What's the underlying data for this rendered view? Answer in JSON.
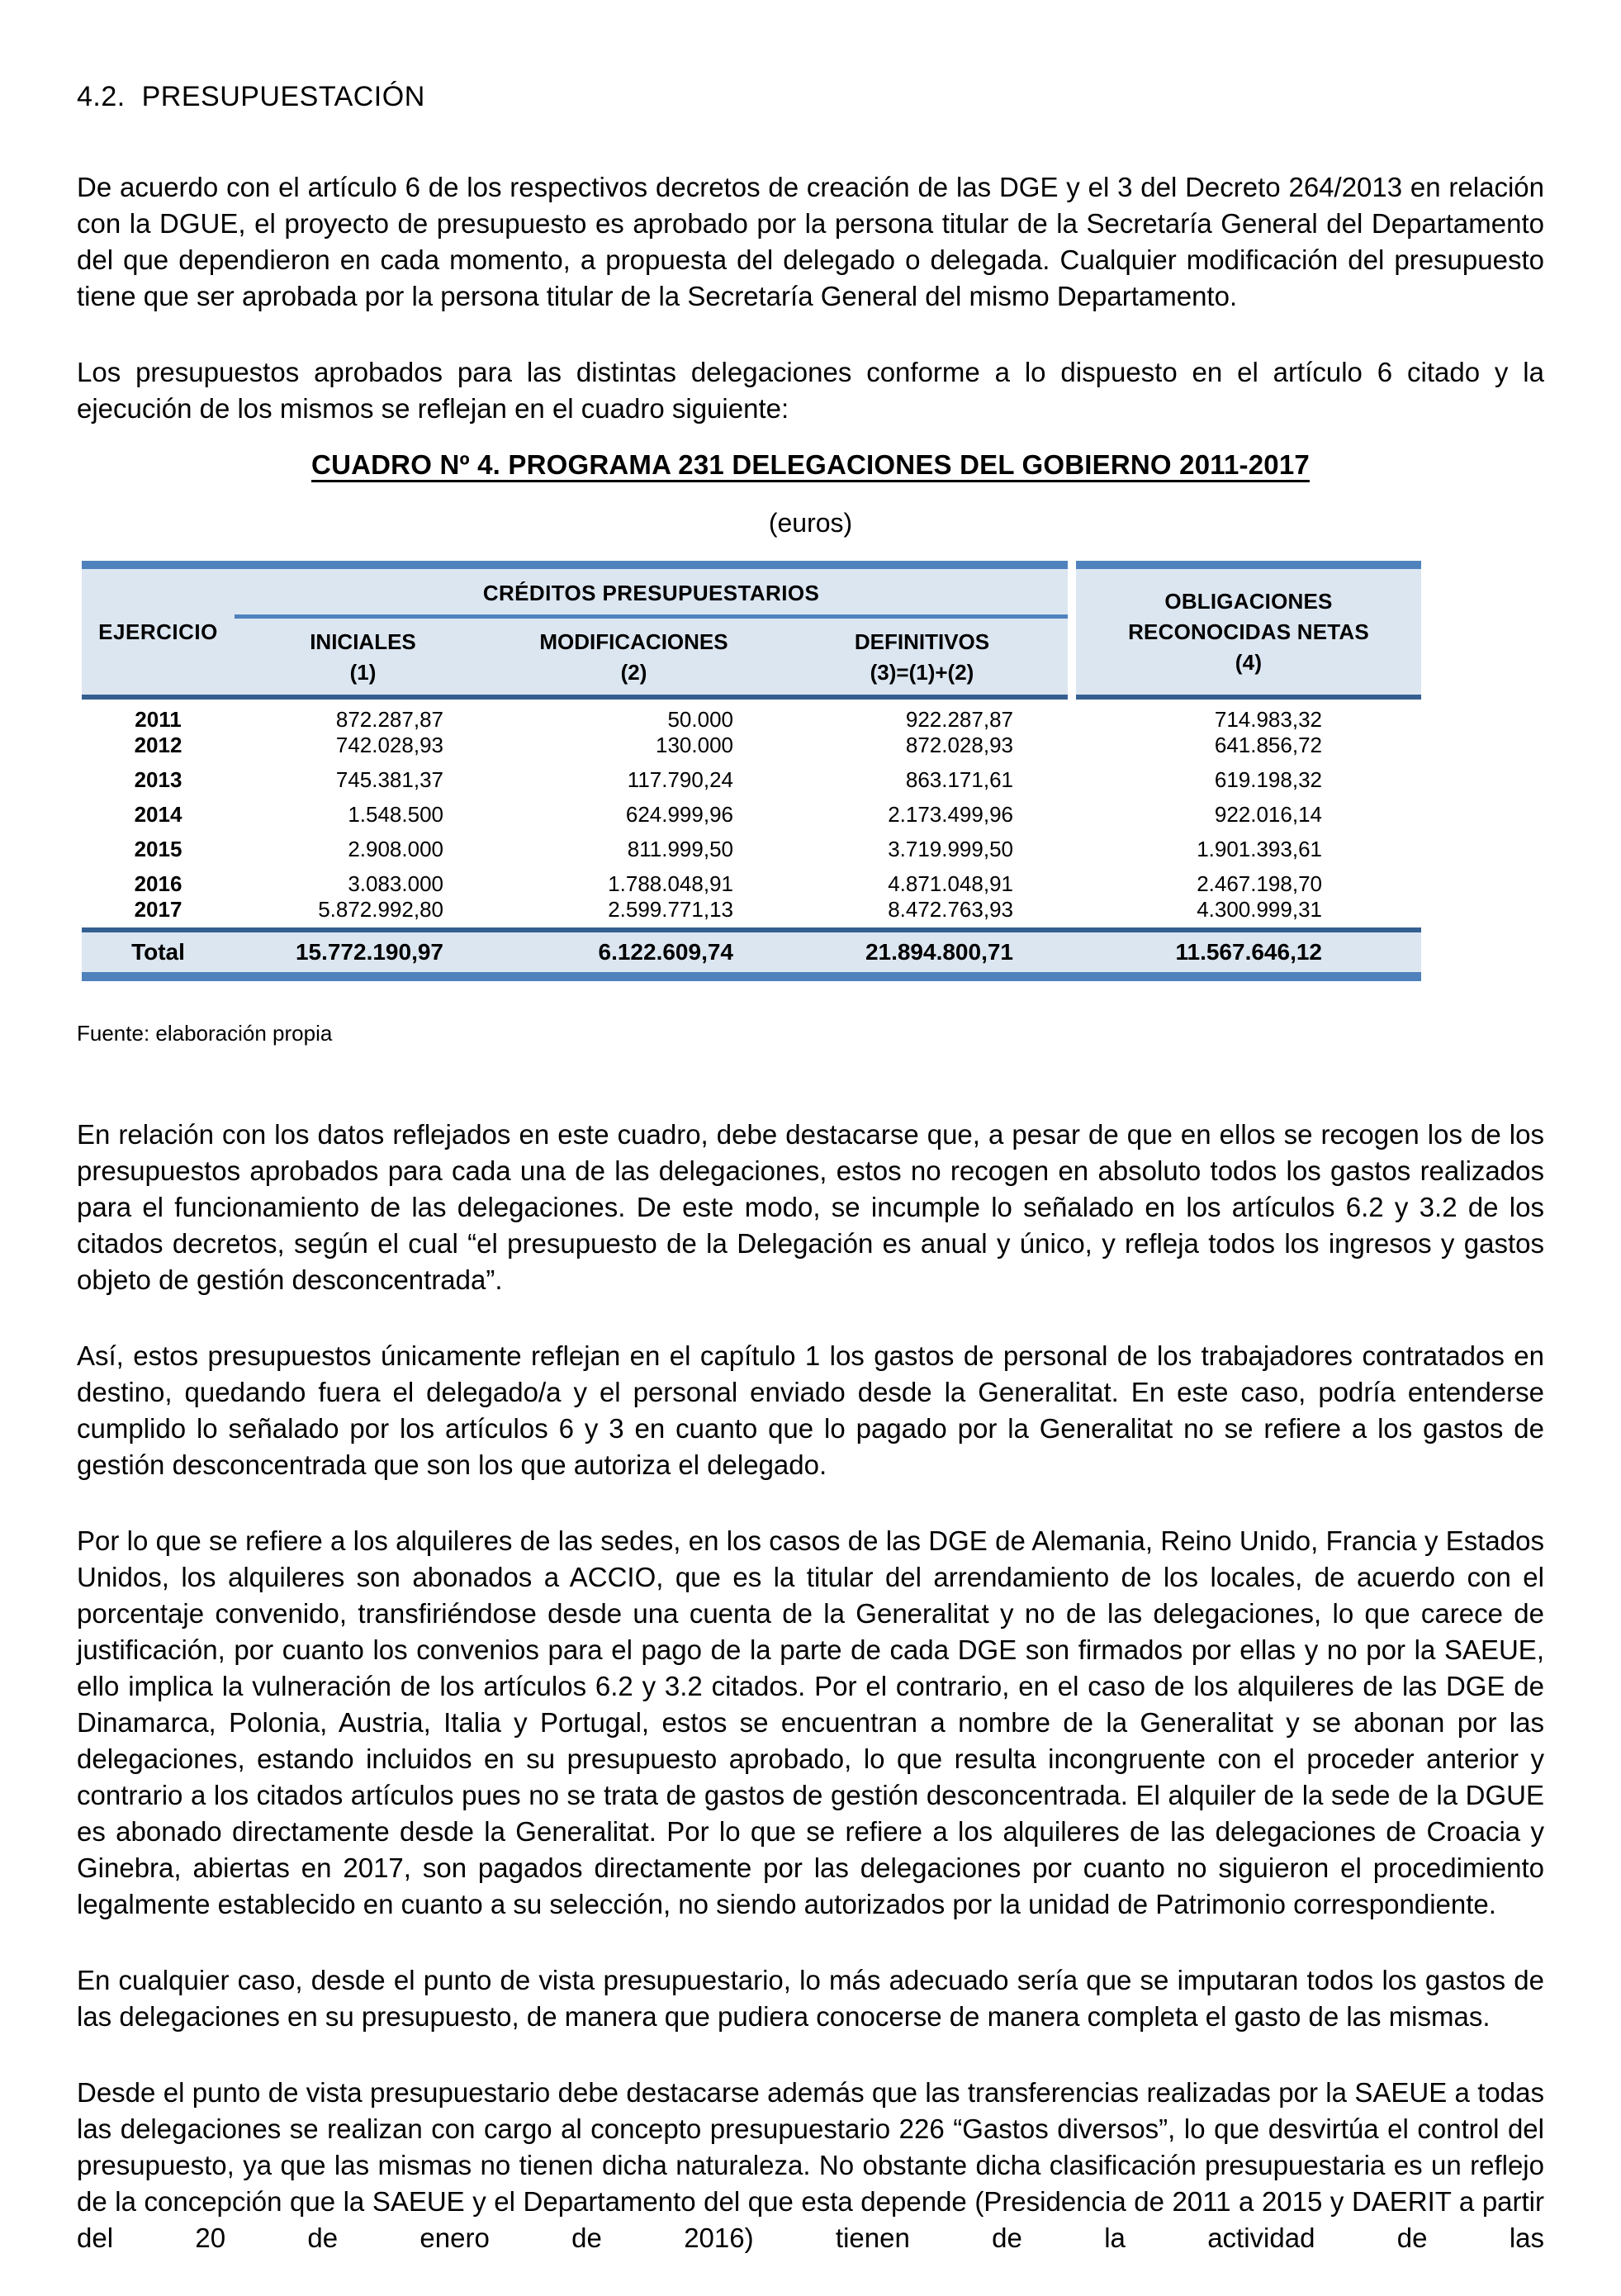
{
  "doc": {
    "section_heading": "4.2.  PRESUPUESTACIÓN",
    "paragraphs": [
      "De acuerdo con el artículo 6 de los respectivos decretos de creación de las DGE y el 3 del Decreto 264/2013 en relación con la DGUE, el proyecto de presupuesto es aprobado por la persona titular de la Secretaría General del Departamento del que dependieron en cada momento, a propuesta del delegado o delegada. Cualquier modificación del presupuesto tiene que ser aprobada por la persona titular de la Secretaría General del mismo Departamento.",
      "Los presupuestos aprobados para las distintas delegaciones conforme a lo dispuesto en el artículo 6 citado y la ejecución de los mismos se reflejan en el cuadro siguiente:",
      "En relación con los datos reflejados en este cuadro, debe destacarse que, a pesar de que en ellos se recogen los de los presupuestos aprobados para cada una de las delegaciones, estos no recogen en absoluto todos los gastos realizados para el funcionamiento de las delegaciones. De este modo, se incumple lo señalado en los artículos 6.2 y 3.2 de los citados decretos, según el cual “el presupuesto de la Delegación es anual y único, y refleja todos los ingresos y gastos objeto de gestión desconcentrada”.",
      "Así, estos presupuestos únicamente reflejan en el capítulo 1 los gastos de personal de los trabajadores contratados en destino, quedando fuera el delegado/a y el personal enviado desde la Generalitat. En este caso, podría entenderse cumplido lo señalado por los artículos 6 y 3 en cuanto que lo pagado por la Generalitat no se refiere a los gastos de gestión desconcentrada que son los que autoriza el delegado.",
      "Por lo que se refiere a los alquileres de las sedes, en los casos de las DGE de Alemania, Reino Unido, Francia y Estados Unidos, los alquileres son abonados a ACCIO, que es la titular del arrendamiento de los locales, de acuerdo con el porcentaje convenido, transfiriéndose desde una cuenta de la Generalitat y no de las delegaciones, lo que carece de justificación, por cuanto los convenios para el pago de la parte de cada DGE son firmados por ellas y no por la SAEUE, ello implica la vulneración de los artículos 6.2 y 3.2 citados. Por el contrario, en el caso de los alquileres de las DGE de Dinamarca, Polonia, Austria, Italia y Portugal, estos se encuentran a nombre de la Generalitat y se abonan por las delegaciones, estando incluidos en su presupuesto aprobado, lo que resulta incongruente con el proceder anterior y contrario a los citados artículos pues no se trata de gastos de gestión desconcentrada. El alquiler de la sede de la DGUE es abonado directamente desde la Generalitat. Por lo que se refiere a los alquileres de las delegaciones de Croacia y Ginebra, abiertas en 2017, son pagados directamente por las delegaciones por cuanto no siguieron el procedimiento legalmente establecido en cuanto a su selección, no siendo autorizados por la unidad de Patrimonio correspondiente.",
      "En cualquier caso, desde el punto de vista presupuestario, lo más adecuado sería que se imputaran todos los gastos de las delegaciones en su presupuesto, de manera que pudiera conocerse de manera completa el gasto de las mismas.",
      "Desde el punto de vista presupuestario debe destacarse además que las transferencias realizadas por la SAEUE a todas las delegaciones se realizan con cargo al concepto presupuestario 226 “Gastos diversos”, lo que desvirtúa el control del presupuesto, ya que las mismas no tienen dicha naturaleza. No obstante dicha clasificación presupuestaria es un reflejo de la concepción que la SAEUE y el Departamento del que esta depende (Presidencia de 2011 a 2015 y DAERIT a partir del 20 de enero de 2016) tienen de la actividad de las"
    ],
    "table_title": "CUADRO Nº 4. PROGRAMA 231 DELEGACIONES DEL GOBIERNO 2011-2017",
    "table_unit": "(euros)",
    "source_note": "Fuente: elaboración propia"
  },
  "colors": {
    "bar_blue": "#4f81bd",
    "dark_line_blue": "#365f91",
    "header_fill": "#dce6f1"
  },
  "chart_data": {
    "type": "table",
    "title": "CUADRO Nº 4. PROGRAMA 231 DELEGACIONES DEL GOBIERNO 2011-2017",
    "unit": "euros",
    "columns": [
      "EJERCICIO",
      "INICIALES (1)",
      "MODIFICACIONES (2)",
      "DEFINITIVOS (3)=(1)+(2)",
      "OBLIGACIONES RECONOCIDAS NETAS (4)"
    ],
    "rows": [
      [
        "2011",
        "872.287,87",
        "50.000",
        "922.287,87",
        "714.983,32"
      ],
      [
        "2012",
        "742.028,93",
        "130.000",
        "872.028,93",
        "641.856,72"
      ],
      [
        "2013",
        "745.381,37",
        "117.790,24",
        "863.171,61",
        "619.198,32"
      ],
      [
        "2014",
        "1.548.500",
        "624.999,96",
        "2.173.499,96",
        "922.016,14"
      ],
      [
        "2015",
        "2.908.000",
        "811.999,50",
        "3.719.999,50",
        "1.901.393,61"
      ],
      [
        "2016",
        "3.083.000",
        "1.788.048,91",
        "4.871.048,91",
        "2.467.198,70"
      ],
      [
        "2017",
        "5.872.992,80",
        "2.599.771,13",
        "8.472.763,93",
        "4.300.999,31"
      ]
    ],
    "total_row": [
      "Total",
      "15.772.190,97",
      "6.122.609,74",
      "21.894.800,71",
      "11.567.646,12"
    ]
  },
  "table": {
    "header": {
      "ejercicio": "EJERCICIO",
      "group": "CRÉDITOS PRESUPUESTARIOS",
      "sub": [
        {
          "l1": "INICIALES",
          "l2": "(1)"
        },
        {
          "l1": "MODIFICACIONES",
          "l2": "(2)"
        },
        {
          "l1": "DEFINITIVOS",
          "l2": "(3)=(1)+(2)"
        }
      ],
      "obligaciones": [
        "OBLIGACIONES",
        "RECONOCIDAS NETAS",
        "(4)"
      ]
    },
    "rows": [
      {
        "year": "2011",
        "iniciales": "872.287,87",
        "modificaciones": "50.000",
        "definitivos": "922.287,87",
        "obligaciones": "714.983,32"
      },
      {
        "year": "2012",
        "iniciales": "742.028,93",
        "modificaciones": "130.000",
        "definitivos": "872.028,93",
        "obligaciones": "641.856,72"
      },
      {
        "year": "2013",
        "iniciales": "745.381,37",
        "modificaciones": "117.790,24",
        "definitivos": "863.171,61",
        "obligaciones": "619.198,32"
      },
      {
        "year": "2014",
        "iniciales": "1.548.500",
        "modificaciones": "624.999,96",
        "definitivos": "2.173.499,96",
        "obligaciones": "922.016,14"
      },
      {
        "year": "2015",
        "iniciales": "2.908.000",
        "modificaciones": "811.999,50",
        "definitivos": "3.719.999,50",
        "obligaciones": "1.901.393,61"
      },
      {
        "year": "2016",
        "iniciales": "3.083.000",
        "modificaciones": "1.788.048,91",
        "definitivos": "4.871.048,91",
        "obligaciones": "2.467.198,70"
      },
      {
        "year": "2017",
        "iniciales": "5.872.992,80",
        "modificaciones": "2.599.771,13",
        "definitivos": "8.472.763,93",
        "obligaciones": "4.300.999,31"
      }
    ],
    "total": {
      "label": "Total",
      "iniciales": "15.772.190,97",
      "modificaciones": "6.122.609,74",
      "definitivos": "21.894.800,71",
      "obligaciones": "11.567.646,12"
    }
  }
}
